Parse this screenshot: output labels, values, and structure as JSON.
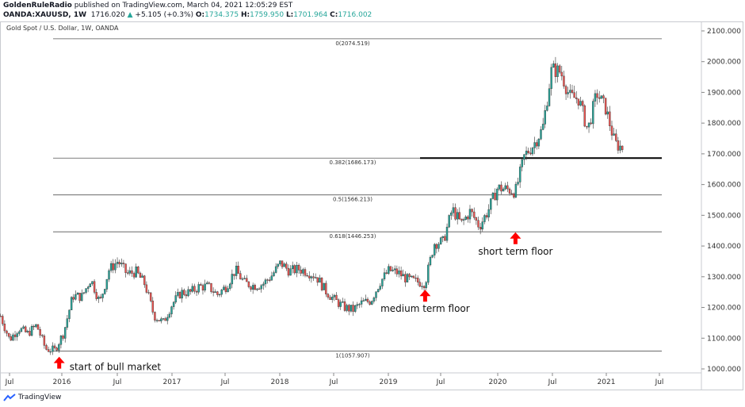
{
  "header": {
    "author": "GoldenRuleRadio",
    "published": "published on TradingView.com, March 04, 2021 12:05:29 EST",
    "symbol": "OANDA:XAUUSD, 1W",
    "last": "1716.020",
    "change": "+5.105 (+0.3%)",
    "o_label": "O:",
    "o": "1734.375",
    "h_label": "H:",
    "h": "1759.950",
    "l_label": "L:",
    "l": "1701.964",
    "c_label": "C:",
    "c": "1716.002"
  },
  "footer": {
    "brand": "TradingView"
  },
  "chart_data": {
    "type": "candlestick",
    "title": "Gold Spot / U.S. Dollar, 1W, OANDA",
    "ylim": [
      1000,
      2100
    ],
    "y_ticks": [
      "2100.000",
      "2000.000",
      "1900.000",
      "1800.000",
      "1700.000",
      "1600.000",
      "1500.000",
      "1400.000",
      "1300.000",
      "1200.000",
      "1100.000",
      "1000.000"
    ],
    "x_ticks": [
      "Jul",
      "2016",
      "Jul",
      "2017",
      "Jul",
      "2018",
      "Jul",
      "2019",
      "Jul",
      "2020",
      "Jul",
      "2021",
      "Jul"
    ],
    "monthly_closes_from_2015_06": [
      1172,
      1095,
      1132,
      1115,
      1142,
      1065,
      1061,
      1118,
      1238,
      1235,
      1293,
      1215,
      1322,
      1351,
      1309,
      1316,
      1275,
      1173,
      1151,
      1211,
      1249,
      1249,
      1268,
      1268,
      1242,
      1269,
      1322,
      1280,
      1271,
      1275,
      1303,
      1345,
      1318,
      1325,
      1316,
      1299,
      1253,
      1224,
      1201,
      1192,
      1215,
      1222,
      1282,
      1321,
      1313,
      1292,
      1284,
      1280,
      1409,
      1414,
      1520,
      1472,
      1513,
      1464,
      1517,
      1589,
      1585,
      1577,
      1694,
      1730,
      1781,
      1975,
      1967,
      1886,
      1879,
      1776,
      1898,
      1847,
      1734,
      1716
    ],
    "fib_levels": [
      {
        "label": "0(2074.519)",
        "value": 2074.519
      },
      {
        "label": "0.382(1686.173)",
        "value": 1686.173
      },
      {
        "label": "0.5(1566.213)",
        "value": 1566.213
      },
      {
        "label": "0.618(1446.253)",
        "value": 1446.253
      },
      {
        "label": "1(1057.907)",
        "value": 1057.907
      }
    ],
    "support_line": 1686.173,
    "annotations": [
      {
        "text": "start of bull market",
        "price": 1050,
        "month": 6.5
      },
      {
        "text": "medium term floor",
        "price": 1268,
        "month": 47
      },
      {
        "text": "short term floor",
        "price": 1455,
        "month": 57
      }
    ],
    "colors": {
      "up": "#26a69a",
      "down": "#ef5350",
      "arrow": "#ff0000"
    }
  }
}
